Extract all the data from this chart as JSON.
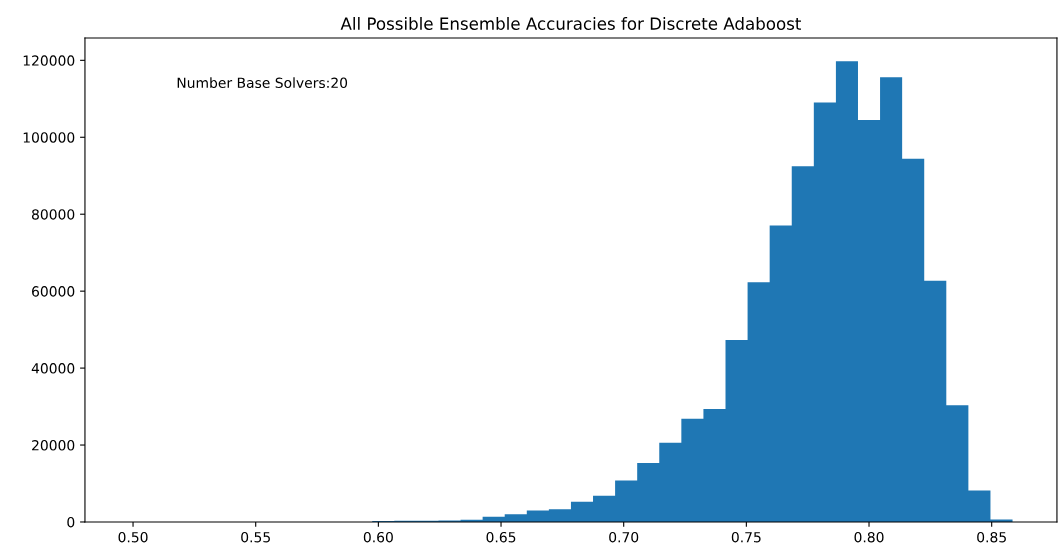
{
  "chart_data": {
    "type": "histogram",
    "title": "All Possible Ensemble Accuracies for Discrete Adaboost",
    "annotations": [
      "Number Base Solvers:20"
    ],
    "bins": [
      0.4985,
      0.5075,
      0.5165,
      0.5255,
      0.5345,
      0.5435,
      0.5525,
      0.5615,
      0.5705,
      0.5795,
      0.5885,
      0.5975,
      0.6065,
      0.6155,
      0.6245,
      0.6335,
      0.6425,
      0.6515,
      0.6605,
      0.6695,
      0.6785,
      0.6875,
      0.6965,
      0.7055,
      0.7145,
      0.7235,
      0.7325,
      0.7415,
      0.7505,
      0.7595,
      0.7685,
      0.7775,
      0.7865,
      0.7955,
      0.8045,
      0.8135,
      0.8225,
      0.8315,
      0.8405,
      0.8495,
      0.8585
    ],
    "values": [
      0,
      0,
      0,
      0,
      0,
      0,
      0,
      0,
      0,
      0,
      0,
      250,
      300,
      350,
      400,
      600,
      1380,
      1990,
      3000,
      3290,
      5240,
      6840,
      10750,
      15360,
      20600,
      26820,
      29390,
      47330,
      62340,
      77080,
      92440,
      109050,
      119790,
      104520,
      115620,
      94390,
      62690,
      30370,
      8170,
      620
    ],
    "color": "#1f77b4",
    "xlim": [
      0.4804,
      0.8766
    ],
    "xticks": [
      {
        "value": 0.5,
        "label": "0.50"
      },
      {
        "value": 0.55,
        "label": "0.55"
      },
      {
        "value": 0.6,
        "label": "0.60"
      },
      {
        "value": 0.65,
        "label": "0.65"
      },
      {
        "value": 0.7,
        "label": "0.70"
      },
      {
        "value": 0.75,
        "label": "0.75"
      },
      {
        "value": 0.8,
        "label": "0.80"
      },
      {
        "value": 0.85,
        "label": "0.85"
      }
    ],
    "ylim": [
      0,
      125800
    ],
    "yticks": [
      0,
      20000,
      40000,
      60000,
      80000,
      100000,
      120000
    ],
    "grid": false
  }
}
